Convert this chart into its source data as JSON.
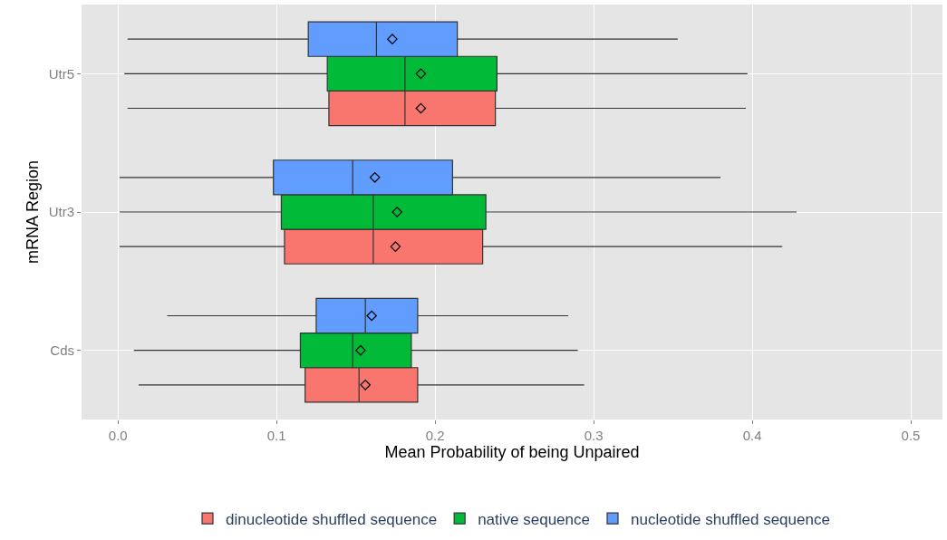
{
  "chart_data": {
    "type": "box",
    "orientation": "horizontal",
    "xlabel": "Mean Probability of being Unpaired",
    "ylabel": "mRNA Region",
    "categories": [
      "Utr5",
      "Utr3",
      "Cds"
    ],
    "xlim": [
      -0.023,
      0.52
    ],
    "xticks": [
      {
        "value": 0,
        "label": "0.0"
      },
      0.1,
      0.2,
      0.3,
      0.4,
      0.5
    ],
    "grid": true,
    "legend": "bottom",
    "marker": "diamond",
    "series": [
      {
        "name": "dinucleotide shuffled sequence",
        "color": "#f8766d",
        "boxes": [
          {
            "low": 0.006,
            "q1": 0.133,
            "median": 0.181,
            "q3": 0.238,
            "high": 0.396,
            "mean": 0.191
          },
          {
            "low": 0.001,
            "q1": 0.105,
            "median": 0.161,
            "q3": 0.23,
            "high": 0.419,
            "mean": 0.175
          },
          {
            "low": 0.013,
            "q1": 0.118,
            "median": 0.152,
            "q3": 0.189,
            "high": 0.294,
            "mean": 0.156
          }
        ]
      },
      {
        "name": "native sequence",
        "color": "#00ba38",
        "boxes": [
          {
            "low": 0.004,
            "q1": 0.132,
            "median": 0.181,
            "q3": 0.239,
            "high": 0.397,
            "mean": 0.191
          },
          {
            "low": 0.001,
            "q1": 0.103,
            "median": 0.161,
            "q3": 0.232,
            "high": 0.428,
            "mean": 0.176
          },
          {
            "low": 0.01,
            "q1": 0.115,
            "median": 0.148,
            "q3": 0.185,
            "high": 0.29,
            "mean": 0.153
          }
        ]
      },
      {
        "name": "nucleotide shuffled sequence",
        "color": "#619cff",
        "boxes": [
          {
            "low": 0.006,
            "q1": 0.12,
            "median": 0.163,
            "q3": 0.214,
            "high": 0.353,
            "mean": 0.173
          },
          {
            "low": 0.001,
            "q1": 0.098,
            "median": 0.148,
            "q3": 0.211,
            "high": 0.38,
            "mean": 0.162
          },
          {
            "low": 0.031,
            "q1": 0.125,
            "median": 0.156,
            "q3": 0.189,
            "high": 0.284,
            "mean": 0.16
          }
        ]
      }
    ]
  }
}
